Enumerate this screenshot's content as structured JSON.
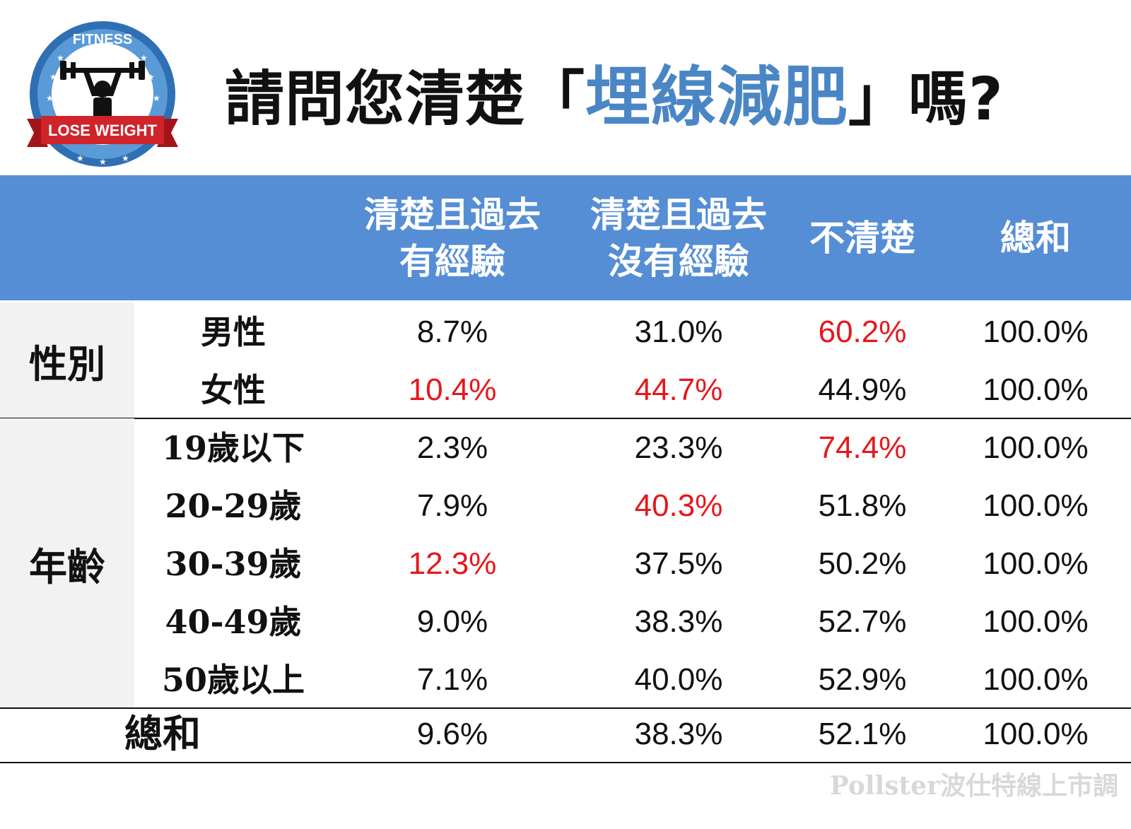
{
  "logo": {
    "top_text": "FITNESS",
    "banner_text": "LOSE WEIGHT"
  },
  "title": {
    "prefix": "請問您清楚「",
    "highlight": "埋線減肥",
    "suffix": "」嗎?"
  },
  "chart_data": {
    "type": "table",
    "columns": [
      "清楚且過去有經驗",
      "清楚且過去沒有經驗",
      "不清楚",
      "總和"
    ],
    "column_lines": [
      [
        "清楚且過去",
        "有經驗"
      ],
      [
        "清楚且過去",
        "沒有經驗"
      ],
      [
        "不清楚"
      ],
      [
        "總和"
      ]
    ],
    "groups": [
      {
        "name": "性別",
        "rows": [
          {
            "label": "男性",
            "values": [
              "8.7%",
              "31.0%",
              "60.2%",
              "100.0%"
            ],
            "highlight": [
              false,
              false,
              true,
              false
            ]
          },
          {
            "label": "女性",
            "values": [
              "10.4%",
              "44.7%",
              "44.9%",
              "100.0%"
            ],
            "highlight": [
              true,
              true,
              false,
              false
            ]
          }
        ]
      },
      {
        "name": "年齡",
        "rows": [
          {
            "label": "19歲以下",
            "values": [
              "2.3%",
              "23.3%",
              "74.4%",
              "100.0%"
            ],
            "highlight": [
              false,
              false,
              true,
              false
            ]
          },
          {
            "label": "20-29歲",
            "values": [
              "7.9%",
              "40.3%",
              "51.8%",
              "100.0%"
            ],
            "highlight": [
              false,
              true,
              false,
              false
            ]
          },
          {
            "label": "30-39歲",
            "values": [
              "12.3%",
              "37.5%",
              "50.2%",
              "100.0%"
            ],
            "highlight": [
              true,
              false,
              false,
              false
            ]
          },
          {
            "label": "40-49歲",
            "values": [
              "9.0%",
              "38.3%",
              "52.7%",
              "100.0%"
            ],
            "highlight": [
              false,
              false,
              false,
              false
            ]
          },
          {
            "label": "50歲以上",
            "values": [
              "7.1%",
              "40.0%",
              "52.9%",
              "100.0%"
            ],
            "highlight": [
              false,
              false,
              false,
              false
            ]
          }
        ]
      }
    ],
    "total": {
      "label": "總和",
      "values": [
        "9.6%",
        "38.3%",
        "52.1%",
        "100.0%"
      ]
    },
    "colors": {
      "header": "#558ed5",
      "highlight": "#e8161b",
      "title_highlight": "#4a86c5",
      "group_bg": "#f2f2f2"
    }
  },
  "watermark": "Pollster波仕特線上市調"
}
